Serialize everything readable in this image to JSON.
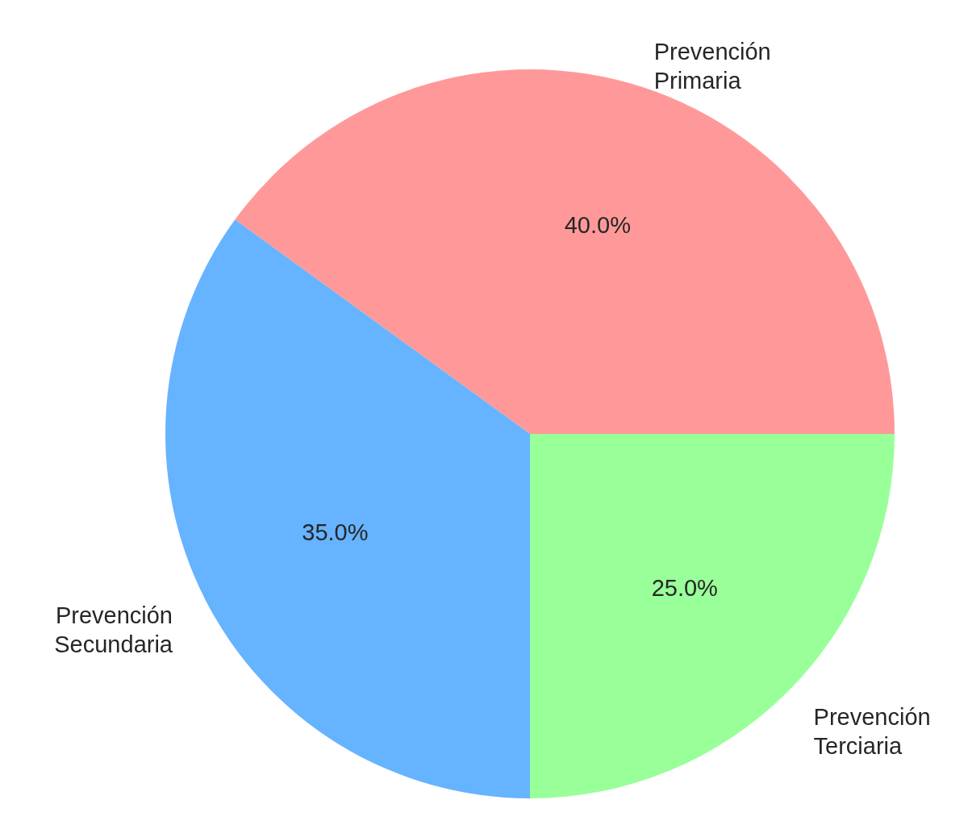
{
  "chart_data": {
    "type": "pie",
    "categories": [
      "Prevención\nPrimaria",
      "Prevención\nSecundaria",
      "Prevención\nTerciaria"
    ],
    "values": [
      40,
      35,
      25
    ],
    "colors": [
      "#ff9999",
      "#66b3ff",
      "#99ff99"
    ],
    "value_labels": [
      "40.0%",
      "35.0%",
      "25.0%"
    ]
  }
}
